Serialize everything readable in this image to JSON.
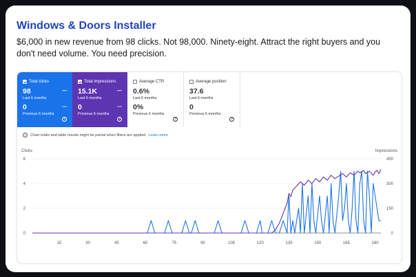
{
  "header": {
    "title": "Windows & Doors Installer",
    "description": "$6,000 in new revenue from 98 clicks. Not 98,000. Ninety-eight. Attract the right buyers and you don't need volume. You need precision."
  },
  "metrics": [
    {
      "label": "Total clicks",
      "value": "98",
      "period": "Last 6 months",
      "prev_value": "0",
      "prev_period": "Previous 6 months",
      "checked": true,
      "color": "#1a73e8"
    },
    {
      "label": "Total impressions",
      "value": "15.1K",
      "period": "Last 6 months",
      "prev_value": "0",
      "prev_period": "Previous 6 months",
      "checked": true,
      "color": "#5e35b1"
    },
    {
      "label": "Average CTR",
      "value": "0.6%",
      "period": "Last 6 months",
      "prev_value": "0%",
      "prev_period": "Previous 6 months",
      "checked": false
    },
    {
      "label": "Average position",
      "value": "37.6",
      "period": "Last 6 months",
      "prev_value": "0",
      "prev_period": "Previous 6 months",
      "checked": false
    }
  ],
  "notice": {
    "text": "Chart totals and table results might be partial when filters are applied.",
    "link": "Learn more"
  },
  "chart_data": {
    "type": "line",
    "left_axis_label": "Clicks",
    "right_axis_label": "Impressions",
    "left_ticks": [
      "0",
      "2",
      "4",
      "6"
    ],
    "right_ticks": [
      "0",
      "150",
      "300",
      "450"
    ],
    "x_ticks": [
      "15",
      "30",
      "45",
      "60",
      "75",
      "90",
      "105",
      "120",
      "135",
      "150",
      "165",
      "180"
    ],
    "ylim_left": [
      0,
      6
    ],
    "ylim_right": [
      0,
      450
    ],
    "xlim": [
      1,
      183
    ],
    "series": [
      {
        "name": "Total clicks",
        "axis": "left",
        "color": "#1a73e8",
        "points": [
          [
            61,
            0
          ],
          [
            63,
            1
          ],
          [
            65,
            0
          ],
          [
            70,
            0
          ],
          [
            72,
            1
          ],
          [
            74,
            0
          ],
          [
            79,
            0
          ],
          [
            81,
            1
          ],
          [
            83,
            0
          ],
          [
            84,
            0
          ],
          [
            86,
            1
          ],
          [
            88,
            0
          ],
          [
            96,
            0
          ],
          [
            98,
            1
          ],
          [
            100,
            0
          ],
          [
            110,
            0
          ],
          [
            112,
            1
          ],
          [
            114,
            0
          ],
          [
            118,
            0
          ],
          [
            120,
            1
          ],
          [
            121,
            0
          ],
          [
            124,
            0
          ],
          [
            126,
            1
          ],
          [
            128,
            0
          ],
          [
            130,
            0
          ],
          [
            132,
            1
          ],
          [
            134,
            0
          ],
          [
            135,
            3
          ],
          [
            136,
            0
          ],
          [
            137,
            1
          ],
          [
            138,
            0
          ],
          [
            140,
            2
          ],
          [
            141,
            0
          ],
          [
            142,
            4
          ],
          [
            143,
            0
          ],
          [
            145,
            3
          ],
          [
            146,
            0
          ],
          [
            147,
            4
          ],
          [
            148,
            1
          ],
          [
            149,
            0
          ],
          [
            151,
            3
          ],
          [
            152,
            1
          ],
          [
            153,
            0
          ],
          [
            155,
            3
          ],
          [
            156,
            0
          ],
          [
            157,
            4
          ],
          [
            158,
            1
          ],
          [
            159,
            0
          ],
          [
            161,
            3
          ],
          [
            162,
            5
          ],
          [
            163,
            1
          ],
          [
            164,
            2
          ],
          [
            165,
            4
          ],
          [
            166,
            1
          ],
          [
            167,
            0
          ],
          [
            168,
            2
          ],
          [
            169,
            5
          ],
          [
            170,
            1
          ],
          [
            171,
            0
          ],
          [
            172,
            4
          ],
          [
            173,
            5
          ],
          [
            174,
            1
          ],
          [
            175,
            0
          ],
          [
            176,
            5
          ],
          [
            177,
            3
          ],
          [
            178,
            0
          ],
          [
            179,
            4
          ],
          [
            180,
            3
          ],
          [
            181,
            2
          ],
          [
            182,
            1
          ],
          [
            183,
            1
          ]
        ]
      },
      {
        "name": "Total impressions",
        "axis": "right",
        "color": "#5e35b1",
        "points": [
          [
            1,
            0
          ],
          [
            126,
            0
          ],
          [
            128,
            20
          ],
          [
            130,
            60
          ],
          [
            131,
            90
          ],
          [
            132,
            120
          ],
          [
            133,
            150
          ],
          [
            134,
            180
          ],
          [
            135,
            240
          ],
          [
            136,
            220
          ],
          [
            137,
            260
          ],
          [
            139,
            285
          ],
          [
            141,
            310
          ],
          [
            143,
            290
          ],
          [
            145,
            320
          ],
          [
            147,
            300
          ],
          [
            149,
            330
          ],
          [
            151,
            310
          ],
          [
            153,
            340
          ],
          [
            155,
            320
          ],
          [
            157,
            350
          ],
          [
            159,
            330
          ],
          [
            161,
            345
          ],
          [
            163,
            360
          ],
          [
            165,
            340
          ],
          [
            167,
            365
          ],
          [
            169,
            350
          ],
          [
            171,
            375
          ],
          [
            172,
            365
          ],
          [
            174,
            380
          ],
          [
            175,
            360
          ],
          [
            177,
            375
          ],
          [
            179,
            350
          ],
          [
            180,
            370
          ],
          [
            181,
            380
          ],
          [
            182,
            360
          ],
          [
            183,
            385
          ]
        ]
      }
    ]
  }
}
